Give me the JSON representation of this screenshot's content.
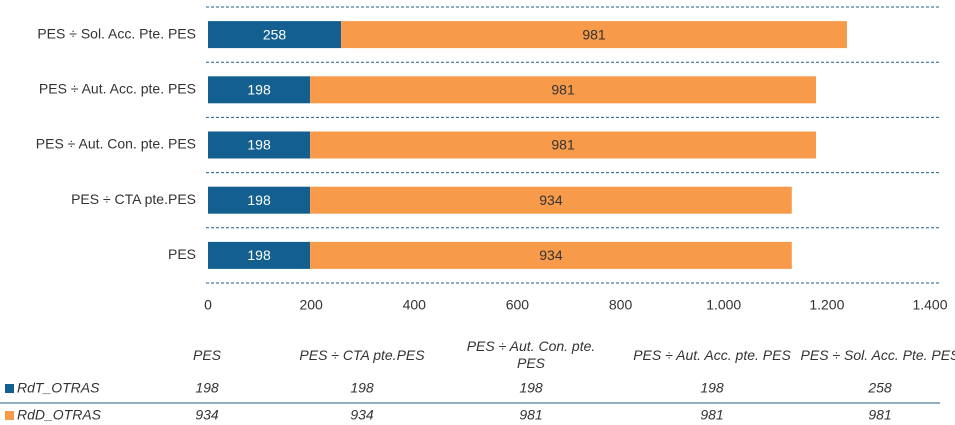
{
  "chart_data": {
    "type": "stacked-bar-horizontal",
    "categories": [
      "PES",
      "PES ÷ CTA pte.PES",
      "PES ÷ Aut. Con. pte. PES",
      "PES ÷ Aut. Acc. pte. PES",
      "PES ÷ Sol. Acc. Pte. PES"
    ],
    "series": [
      {
        "name": "RdT_OTRAS",
        "color": "#135f8f",
        "values": [
          198,
          198,
          198,
          198,
          258
        ]
      },
      {
        "name": "RdD_OTRAS",
        "color": "#f79b4b",
        "values": [
          934,
          934,
          981,
          981,
          981
        ]
      }
    ],
    "xlim": [
      0,
      1400
    ],
    "xticks": [
      0,
      200,
      400,
      600,
      800,
      {
        "value": 1000,
        "label": "1.000"
      },
      {
        "value": 1200,
        "label": "1.200"
      },
      {
        "value": 1400,
        "label": "1.400"
      }
    ],
    "grid": true,
    "data_table": true
  }
}
